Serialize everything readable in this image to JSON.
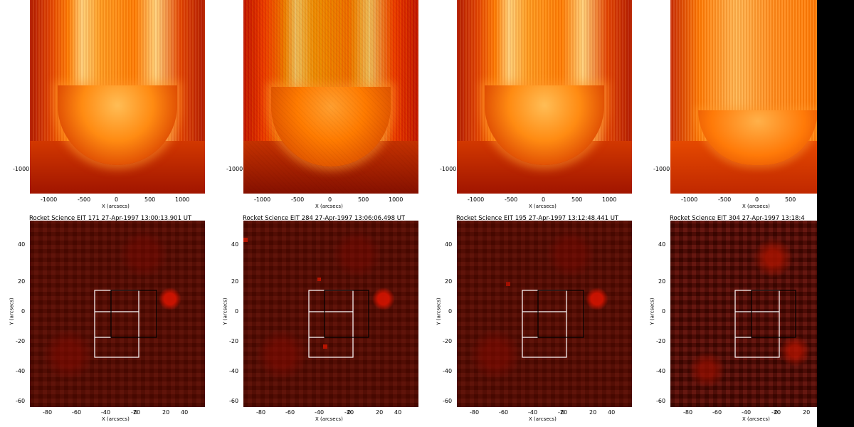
{
  "panels": [
    {
      "title": "Rocket Science EIT 171 27-Apr-1997 13:00:13.901 UT",
      "top_ytick": "-1000",
      "top_xticks": [
        "-1000",
        "-500",
        "0",
        "500",
        "1000"
      ],
      "top_xlabel": "X (arcsecs)",
      "bottom_xticks": [
        "-80",
        "-60",
        "-40",
        "-20",
        "0",
        "20",
        "40"
      ],
      "bottom_yticks": [
        "40",
        "20",
        "0",
        "-20",
        "-40",
        "-60"
      ],
      "bottom_xlabel": "X (arcsecs)",
      "bottom_ylabel": "Y (arcsecs)"
    },
    {
      "title": "Rocket Science EIT 284 27-Apr-1997 13:06:06.498 UT",
      "top_ytick": "-1000",
      "top_xticks": [
        "-1000",
        "-500",
        "0",
        "500",
        "1000"
      ],
      "top_xlabel": "X (arcsecs)",
      "bottom_xticks": [
        "-80",
        "-60",
        "-40",
        "-20",
        "0",
        "20",
        "40"
      ],
      "bottom_yticks": [
        "40",
        "20",
        "0",
        "-20",
        "-40",
        "-60"
      ],
      "bottom_xlabel": "X (arcsecs)",
      "bottom_ylabel": "Y (arcsecs)"
    },
    {
      "title": "Rocket Science EIT 195 27-Apr-1997 13:12:48.441 UT",
      "top_ytick": "-1000",
      "top_xticks": [
        "-1000",
        "-500",
        "0",
        "500",
        "1000"
      ],
      "top_xlabel": "X (arcsecs)",
      "bottom_xticks": [
        "-80",
        "-60",
        "-40",
        "-20",
        "0",
        "20",
        "40"
      ],
      "bottom_yticks": [
        "40",
        "20",
        "0",
        "-20",
        "-40",
        "-60"
      ],
      "bottom_xlabel": "X (arcsecs)",
      "bottom_ylabel": "Y (arcsecs)"
    },
    {
      "title": "Rocket Science EIT 304 27-Apr-1997 13:18:4",
      "top_ytick": "-1000",
      "top_xticks": [
        "-1000",
        "-500",
        "0",
        "500"
      ],
      "top_xlabel": "X (arcsecs)",
      "bottom_xticks": [
        "-80",
        "-60",
        "-40",
        "-20",
        "0",
        "20"
      ],
      "bottom_yticks": [
        "40",
        "20",
        "0",
        "-20",
        "-40",
        "-60"
      ],
      "bottom_xlabel": "X (arcsecs)",
      "bottom_ylabel": "Y (arcsecs)"
    }
  ]
}
